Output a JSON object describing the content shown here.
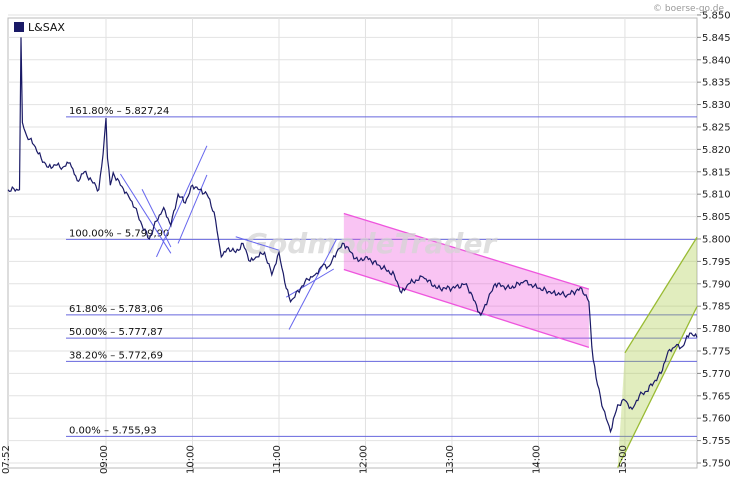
{
  "source_label": "© boerse-go.de",
  "watermark": "GodmodeTrader",
  "chart_data": {
    "type": "line",
    "title": "L&SAX",
    "ylim": [
      5.75,
      5.852
    ],
    "xlim": [
      "07:52",
      "15:50"
    ],
    "y_ticks": [
      "5.750",
      "5.755",
      "5.760",
      "5.765",
      "5.770",
      "5.775",
      "5.780",
      "5.785",
      "5.790",
      "5.795",
      "5.800",
      "5.805",
      "5.810",
      "5.815",
      "5.820",
      "5.825",
      "5.830",
      "5.835",
      "5.840",
      "5.845",
      "5.850"
    ],
    "x_ticks": [
      {
        "time": "07:52",
        "label": "07:52"
      },
      {
        "time": "09:00",
        "label": "09:00"
      },
      {
        "time": "10:00",
        "label": "10:00"
      },
      {
        "time": "11:00",
        "label": "11:00"
      },
      {
        "time": "12:00",
        "label": "12:00"
      },
      {
        "time": "13:00",
        "label": "13:00"
      },
      {
        "time": "14:00",
        "label": "14:00"
      },
      {
        "time": "15:00",
        "label": "15:00"
      }
    ],
    "grid": true,
    "legend": "top-left",
    "colors": {
      "line": "#1a1a66",
      "levels": "#6666dd",
      "pink_channel": "#ee55dd",
      "green_channel": "#99bb33",
      "trend_lines": "#6666ee"
    },
    "fib_levels": [
      {
        "label": "161.80% – 5.827,24",
        "value": 5.82724
      },
      {
        "label": "100.00% – 5.799,90",
        "value": 5.7999
      },
      {
        "label": "61.80% – 5.783,06",
        "value": 5.78306
      },
      {
        "label": "50.00% – 5.777,87",
        "value": 5.77787
      },
      {
        "label": "38.20% – 5.772,69",
        "value": 5.77269
      },
      {
        "label": "0.00% – 5.755,93",
        "value": 5.75593
      }
    ],
    "channels": [
      {
        "name": "pink",
        "upper": [
          [
            "11:45",
            5.8057
          ],
          [
            "14:35",
            5.7888
          ]
        ],
        "lower": [
          [
            "11:45",
            5.7932
          ],
          [
            "14:35",
            5.7758
          ]
        ]
      },
      {
        "name": "green",
        "upper": [
          [
            "15:00",
            5.7746
          ],
          [
            "15:50",
            5.8004
          ]
        ],
        "lower": [
          [
            "14:55",
            5.749
          ],
          [
            "15:50",
            5.7849
          ]
        ]
      }
    ],
    "trend_lines": [
      [
        [
          "09:10",
          5.8145
        ],
        [
          "09:45",
          5.7968
        ]
      ],
      [
        [
          "09:35",
          5.796
        ],
        [
          "10:10",
          5.8208
        ]
      ],
      [
        [
          "09:50",
          5.799
        ],
        [
          "10:10",
          5.8143
        ]
      ],
      [
        [
          "09:25",
          5.8111
        ],
        [
          "09:45",
          5.7982
        ]
      ],
      [
        [
          "10:30",
          5.8005
        ],
        [
          "11:00",
          5.7975
        ]
      ],
      [
        [
          "11:07",
          5.7798
        ],
        [
          "11:40",
          5.8
        ]
      ],
      [
        [
          "11:05",
          5.787
        ],
        [
          "11:38",
          5.7933
        ]
      ]
    ],
    "series": [
      {
        "x": [
          "07:52",
          "08:00",
          "08:01",
          "08:02",
          "08:05",
          "08:10",
          "08:15",
          "08:20",
          "08:25",
          "08:30",
          "08:35",
          "08:40",
          "08:45",
          "08:50",
          "08:55",
          "08:58",
          "09:00",
          "09:01",
          "09:03",
          "09:05",
          "09:10",
          "09:15",
          "09:20",
          "09:25",
          "09:30",
          "09:35",
          "09:40",
          "09:45",
          "09:50",
          "09:55",
          "10:00",
          "10:05",
          "10:10",
          "10:15",
          "10:18",
          "10:20",
          "10:25",
          "10:30",
          "10:35",
          "10:40",
          "10:45",
          "10:50",
          "10:55",
          "11:00",
          "11:05",
          "11:08",
          "11:15",
          "11:20",
          "11:25",
          "11:30",
          "11:35",
          "11:40",
          "11:45",
          "11:50",
          "11:55",
          "12:00",
          "12:10",
          "12:20",
          "12:25",
          "12:30",
          "12:40",
          "12:50",
          "13:00",
          "13:10",
          "13:20",
          "13:25",
          "13:30",
          "13:40",
          "13:50",
          "14:00",
          "14:10",
          "14:20",
          "14:30",
          "14:35",
          "14:37",
          "14:40",
          "14:45",
          "14:50",
          "14:55",
          "15:00",
          "15:05",
          "15:10",
          "15:15",
          "15:20",
          "15:25",
          "15:30",
          "15:35",
          "15:40",
          "15:45",
          "15:50"
        ],
        "y": [
          5.811,
          5.811,
          5.845,
          5.826,
          5.823,
          5.821,
          5.818,
          5.816,
          5.8165,
          5.816,
          5.817,
          5.813,
          5.815,
          5.813,
          5.811,
          5.819,
          5.827,
          5.818,
          5.812,
          5.8148,
          5.812,
          5.81,
          5.807,
          5.803,
          5.8,
          5.804,
          5.807,
          5.803,
          5.81,
          5.808,
          5.812,
          5.811,
          5.81,
          5.806,
          5.8,
          5.796,
          5.798,
          5.797,
          5.799,
          5.795,
          5.796,
          5.797,
          5.792,
          5.797,
          5.789,
          5.786,
          5.789,
          5.791,
          5.792,
          5.794,
          5.794,
          5.797,
          5.799,
          5.797,
          5.795,
          5.796,
          5.794,
          5.792,
          5.788,
          5.79,
          5.7915,
          5.789,
          5.789,
          5.79,
          5.783,
          5.7865,
          5.79,
          5.789,
          5.7905,
          5.789,
          5.788,
          5.7875,
          5.789,
          5.786,
          5.776,
          5.769,
          5.762,
          5.757,
          5.763,
          5.764,
          5.762,
          5.765,
          5.766,
          5.768,
          5.77,
          5.775,
          5.776,
          5.776,
          5.779,
          5.778
        ]
      }
    ]
  }
}
